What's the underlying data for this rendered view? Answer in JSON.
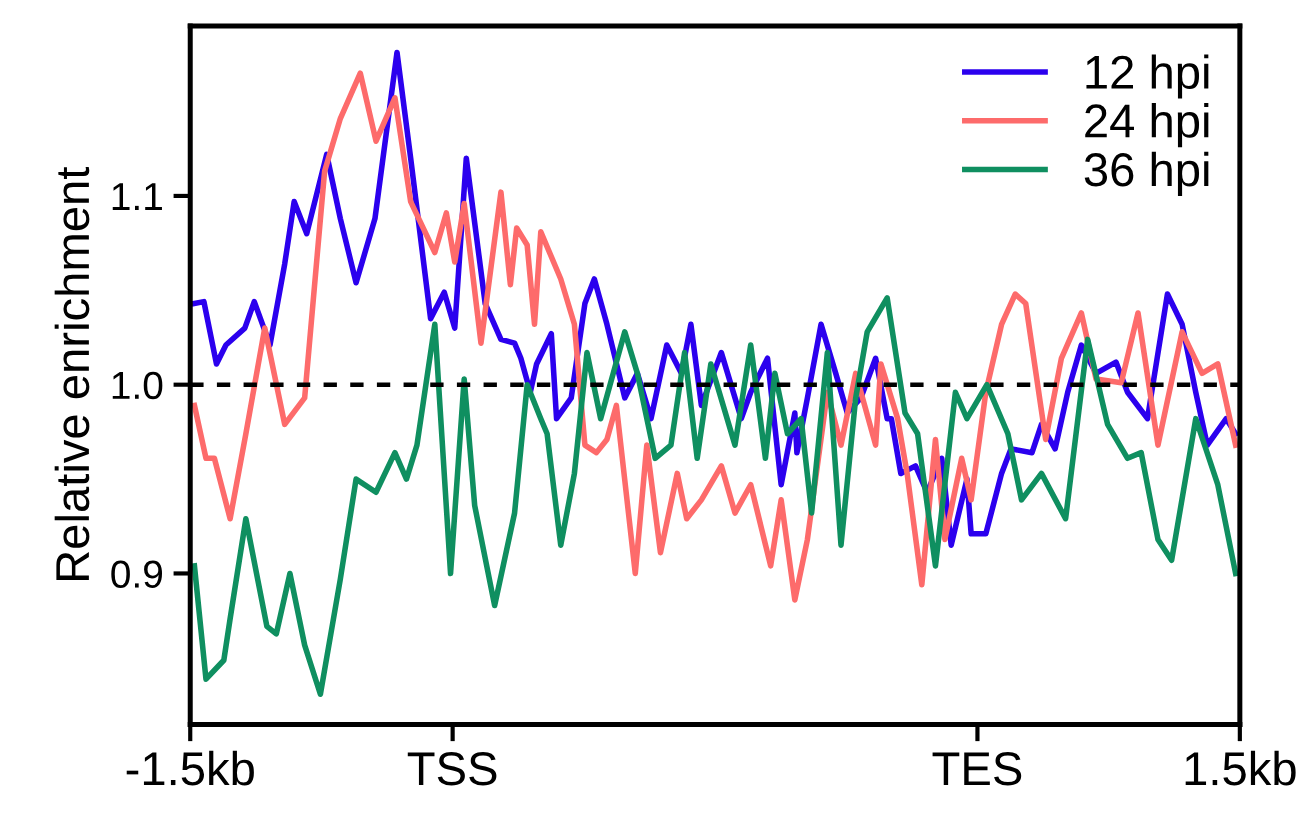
{
  "chart_data": {
    "type": "line",
    "ylabel": "Relative enrichment",
    "xlim": [
      -1.5,
      1.5
    ],
    "xticks": [
      {
        "value": -1.5,
        "label": "-1.5kb"
      },
      {
        "value": -0.75,
        "label": "TSS"
      },
      {
        "value": 0.75,
        "label": "TES"
      },
      {
        "value": 1.5,
        "label": "1.5kb"
      }
    ],
    "ylim": [
      0.82,
      1.19
    ],
    "yticks": [
      0.9,
      {
        "value": 1.0,
        "label": "1.0"
      },
      1.1
    ],
    "grid": false,
    "legend": "top right",
    "marker": "none",
    "line_style": "solid",
    "ref_lines": [
      {
        "axis": "y",
        "value": 1.0,
        "color": "#000000",
        "line_style": "dashed"
      }
    ],
    "series": [
      {
        "name": "12 hpi",
        "color": "#2b00ee",
        "x": [
          -1.488,
          -1.461,
          -1.425,
          -1.398,
          -1.344,
          -1.317,
          -1.272,
          -1.23,
          -1.203,
          -1.167,
          -1.11,
          -1.071,
          -1.026,
          -0.972,
          -0.909,
          -0.87,
          -0.813,
          -0.774,
          -0.744,
          -0.711,
          -0.657,
          -0.612,
          -0.573,
          -0.555,
          -0.528,
          -0.51,
          -0.468,
          -0.453,
          -0.411,
          -0.372,
          -0.345,
          -0.309,
          -0.258,
          -0.222,
          -0.183,
          -0.138,
          -0.096,
          -0.069,
          -0.039,
          0.018,
          0.075,
          0.102,
          0.15,
          0.189,
          0.228,
          0.234,
          0.264,
          0.303,
          0.345,
          0.378,
          0.417,
          0.459,
          0.492,
          0.504,
          0.531,
          0.573,
          0.606,
          0.648,
          0.675,
          0.72,
          0.732,
          0.774,
          0.819,
          0.846,
          0.906,
          0.933,
          0.972,
          1.008,
          1.047,
          1.089,
          1.146,
          1.179,
          1.236,
          1.293,
          1.335,
          1.374,
          1.407,
          1.461,
          1.488
        ],
        "values": [
          1.043,
          1.044,
          1.011,
          1.021,
          1.03,
          1.044,
          1.021,
          1.064,
          1.097,
          1.08,
          1.122,
          1.088,
          1.054,
          1.088,
          1.176,
          1.12,
          1.035,
          1.049,
          1.03,
          1.12,
          1.043,
          1.024,
          1.022,
          1.014,
          0.996,
          1.011,
          1.027,
          0.982,
          0.993,
          1.043,
          1.056,
          1.032,
          0.993,
          1.006,
          0.982,
          1.021,
          1.006,
          1.032,
          0.989,
          1.017,
          0.982,
          0.996,
          1.014,
          0.947,
          0.985,
          0.964,
          0.993,
          1.032,
          1.006,
          0.985,
          0.993,
          1.014,
          0.982,
          0.982,
          0.953,
          0.957,
          0.943,
          0.961,
          0.915,
          0.95,
          0.921,
          0.921,
          0.953,
          0.966,
          0.964,
          0.979,
          0.966,
          0.996,
          1.021,
          1.006,
          1.012,
          0.996,
          0.982,
          1.048,
          1.032,
          0.996,
          0.968,
          0.982,
          0.974
        ]
      },
      {
        "name": "24 hpi",
        "color": "#fd6b6b",
        "x": [
          -1.488,
          -1.455,
          -1.431,
          -1.386,
          -1.341,
          -1.287,
          -1.23,
          -1.173,
          -1.116,
          -1.071,
          -1.014,
          -0.969,
          -0.915,
          -0.87,
          -0.801,
          -0.768,
          -0.744,
          -0.717,
          -0.669,
          -0.612,
          -0.585,
          -0.567,
          -0.537,
          -0.516,
          -0.498,
          -0.441,
          -0.402,
          -0.372,
          -0.339,
          -0.309,
          -0.282,
          -0.228,
          -0.195,
          -0.156,
          -0.108,
          -0.081,
          -0.039,
          0.018,
          0.057,
          0.102,
          0.159,
          0.189,
          0.228,
          0.264,
          0.321,
          0.36,
          0.402,
          0.459,
          0.474,
          0.522,
          0.549,
          0.591,
          0.63,
          0.657,
          0.705,
          0.732,
          0.774,
          0.819,
          0.858,
          0.888,
          0.945,
          0.99,
          1.047,
          1.089,
          1.161,
          1.209,
          1.266,
          1.335,
          1.392,
          1.437,
          1.488
        ],
        "values": [
          0.989,
          0.961,
          0.961,
          0.929,
          0.974,
          1.03,
          0.979,
          0.993,
          1.113,
          1.141,
          1.165,
          1.129,
          1.152,
          1.097,
          1.07,
          1.091,
          1.065,
          1.096,
          1.022,
          1.102,
          1.053,
          1.083,
          1.074,
          1.032,
          1.081,
          1.056,
          1.032,
          0.968,
          0.964,
          0.971,
          0.989,
          0.9,
          0.968,
          0.911,
          0.953,
          0.929,
          0.939,
          0.957,
          0.932,
          0.947,
          0.904,
          0.939,
          0.886,
          0.918,
          0.996,
          0.968,
          1.006,
          0.968,
          1.011,
          0.982,
          0.953,
          0.894,
          0.971,
          0.918,
          0.961,
          0.939,
          0.996,
          1.032,
          1.048,
          1.043,
          0.971,
          1.014,
          1.038,
          1.003,
          1.001,
          1.038,
          0.968,
          1.028,
          1.006,
          1.011,
          0.968
        ]
      },
      {
        "name": "36 hpi",
        "color": "#0f8f60",
        "x": [
          -1.488,
          -1.455,
          -1.404,
          -1.386,
          -1.341,
          -1.281,
          -1.254,
          -1.215,
          -1.173,
          -1.128,
          -1.071,
          -1.026,
          -0.969,
          -0.915,
          -0.882,
          -0.852,
          -0.801,
          -0.756,
          -0.717,
          -0.687,
          -0.63,
          -0.573,
          -0.537,
          -0.498,
          -0.48,
          -0.441,
          -0.402,
          -0.366,
          -0.327,
          -0.258,
          -0.222,
          -0.171,
          -0.126,
          -0.087,
          -0.051,
          -0.012,
          0.057,
          0.102,
          0.144,
          0.171,
          0.207,
          0.246,
          0.276,
          0.321,
          0.36,
          0.402,
          0.435,
          0.492,
          0.543,
          0.579,
          0.63,
          0.687,
          0.72,
          0.777,
          0.837,
          0.876,
          0.933,
          1.002,
          1.065,
          1.122,
          1.179,
          1.218,
          1.266,
          1.305,
          1.374,
          1.437,
          1.488
        ],
        "values": [
          0.904,
          0.844,
          0.854,
          0.876,
          0.929,
          0.872,
          0.868,
          0.9,
          0.862,
          0.836,
          0.897,
          0.95,
          0.943,
          0.964,
          0.95,
          0.968,
          1.032,
          0.9,
          1.003,
          0.936,
          0.883,
          0.932,
          1.0,
          0.982,
          0.974,
          0.915,
          0.953,
          1.017,
          0.982,
          1.028,
          1.006,
          0.961,
          0.968,
          1.017,
          0.961,
          1.011,
          0.968,
          1.021,
          0.961,
          1.006,
          0.974,
          0.982,
          0.932,
          1.017,
          0.915,
          0.993,
          1.028,
          1.046,
          0.985,
          0.974,
          0.904,
          0.996,
          0.982,
          1.0,
          0.974,
          0.939,
          0.953,
          0.929,
          1.024,
          0.979,
          0.961,
          0.964,
          0.918,
          0.907,
          0.982,
          0.947,
          0.9
        ]
      }
    ]
  }
}
